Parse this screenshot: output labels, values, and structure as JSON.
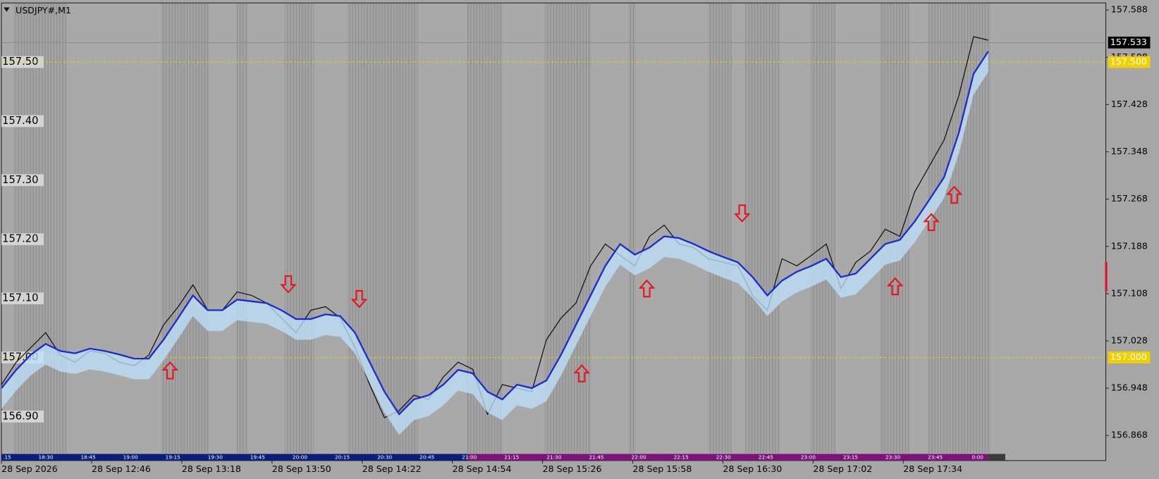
{
  "chart_data": {
    "type": "line",
    "title": "USDJPY#,M1",
    "series": [
      {
        "color": "#111111",
        "values": [
          156.954,
          156.992,
          157.017,
          157.042,
          157.004,
          156.992,
          157.011,
          157.007,
          156.992,
          156.986,
          157.004,
          157.055,
          157.086,
          157.123,
          157.08,
          157.08,
          157.111,
          157.105,
          157.092,
          157.067,
          157.042,
          157.08,
          157.086,
          157.067,
          157.017,
          156.954,
          156.898,
          156.91,
          156.936,
          156.929,
          156.967,
          156.992,
          156.98,
          156.904,
          156.954,
          156.948,
          156.942,
          157.03,
          157.067,
          157.092,
          157.155,
          157.192,
          157.173,
          157.155,
          157.205,
          157.224,
          157.192,
          157.186,
          157.167,
          157.161,
          157.155,
          157.105,
          157.08,
          157.167,
          157.155,
          157.173,
          157.192,
          157.117,
          157.161,
          157.18,
          157.217,
          157.205,
          157.28,
          157.324,
          157.368,
          157.443,
          157.543,
          157.537
        ]
      },
      {
        "color": "#1a2bd0",
        "values": [
          156.948,
          156.979,
          157.005,
          157.023,
          157.011,
          157.007,
          157.015,
          157.011,
          157.005,
          156.998,
          156.998,
          157.03,
          157.067,
          157.105,
          157.08,
          157.08,
          157.098,
          157.095,
          157.092,
          157.08,
          157.065,
          157.065,
          157.073,
          157.07,
          157.042,
          156.992,
          156.942,
          156.904,
          156.929,
          156.936,
          156.954,
          156.979,
          156.973,
          156.942,
          156.929,
          156.954,
          156.948,
          156.961,
          157.005,
          157.055,
          157.105,
          157.155,
          157.192,
          157.174,
          157.186,
          157.205,
          157.202,
          157.192,
          157.18,
          157.17,
          157.161,
          157.136,
          157.105,
          157.13,
          157.145,
          157.155,
          157.167,
          157.136,
          157.142,
          157.167,
          157.192,
          157.199,
          157.23,
          157.267,
          157.305,
          157.38,
          157.48,
          157.518
        ]
      }
    ],
    "ylim": [
      156.838,
      157.6
    ],
    "yticks": [
      157.588,
      157.508,
      157.428,
      157.348,
      157.268,
      157.188,
      157.108,
      157.028,
      156.948,
      156.868
    ],
    "left_labels": [
      {
        "value": 157.5,
        "label": "157.50"
      },
      {
        "value": 157.4,
        "label": "157.40"
      },
      {
        "value": 157.3,
        "label": "157.30"
      },
      {
        "value": 157.2,
        "label": "157.20"
      },
      {
        "value": 157.1,
        "label": "157.10"
      },
      {
        "value": 157.0,
        "label": "157.00"
      },
      {
        "value": 156.9,
        "label": "156.90"
      }
    ],
    "levels": [
      {
        "value": 157.5,
        "label": "157.500"
      },
      {
        "value": 157.0,
        "label": "157.000"
      }
    ],
    "current_price": 157.533,
    "date_labels": [
      "28 Sep 2026",
      "28 Sep 12:46",
      "28 Sep 13:18",
      "28 Sep 13:50",
      "28 Sep 14:22",
      "28 Sep 14:54",
      "28 Sep 15:26",
      "28 Sep 15:58",
      "28 Sep 16:30",
      "28 Sep 17:02",
      "28 Sep 17:34"
    ],
    "session_labels": [
      ".15",
      "18:30",
      "18:45",
      "19:00",
      "19:15",
      "19:30",
      "19:45",
      "20:00",
      "20:15",
      "20:30",
      "20:45",
      "21:00",
      "21:15",
      "21:30",
      "21:45",
      "22:00",
      "22:15",
      "22:30",
      "22:45",
      "23:00",
      "23:15",
      "23:30",
      "23:45",
      "0:00"
    ]
  }
}
